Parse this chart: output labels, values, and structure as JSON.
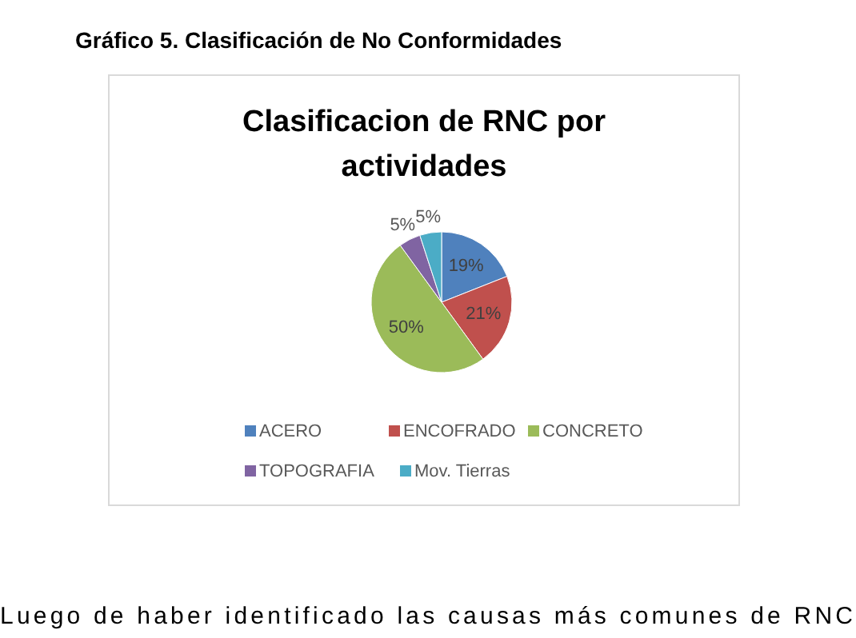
{
  "chart_data": {
    "type": "pie",
    "title": "Gráfico 5. Clasificación de No Conformidades",
    "subtitle": "Clasificacion de RNC por actividades",
    "categories": [
      "ACERO",
      "ENCOFRADO",
      "CONCRETO",
      "TOPOGRAFIA",
      "Mov. Tierras"
    ],
    "values": [
      19,
      21,
      50,
      5,
      5
    ],
    "colors": [
      "#4f81bd",
      "#c0504d",
      "#9bbb59",
      "#8064a2",
      "#4bacc6"
    ],
    "value_labels": [
      "19%",
      "21%",
      "50%",
      "5%",
      "5%"
    ],
    "legend": "bottom",
    "annotations": [
      "Luego de haber identificado las causas más comunes de RNC"
    ]
  }
}
